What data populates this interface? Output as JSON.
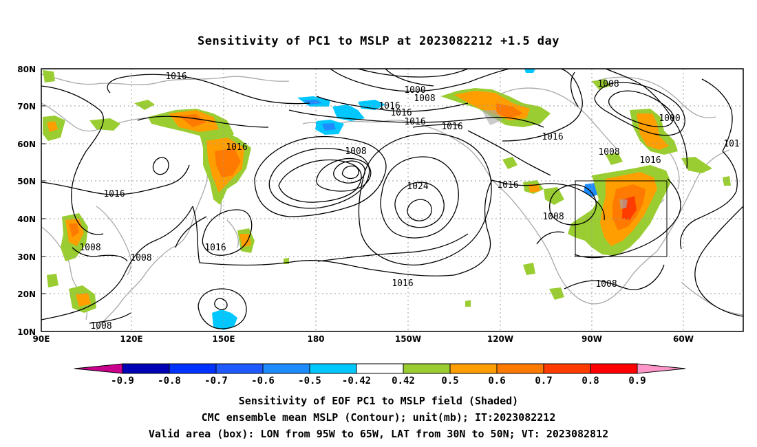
{
  "title": "Sensitivity of PC1 to MSLP at 2023082212 +1.5 day",
  "map": {
    "lat_ticks": [
      "80N",
      "70N",
      "60N",
      "50N",
      "40N",
      "30N",
      "20N",
      "10N"
    ],
    "lon_ticks": [
      "90E",
      "120E",
      "150E",
      "180",
      "150W",
      "120W",
      "90W",
      "60W"
    ],
    "contour_labels": [
      "1016",
      "1000",
      "1008",
      "1016",
      "1016",
      "1016",
      "1016",
      "1008",
      "1016",
      "1016",
      "1016",
      "1024",
      "1016",
      "1008",
      "1000",
      "1008",
      "1016",
      "101",
      "1008",
      "1008",
      "1016",
      "1008",
      "1008",
      "1016",
      "1008"
    ],
    "valid_box": {
      "lon_from": "95W",
      "lon_to": "65W",
      "lat_from": "30N",
      "lat_to": "50N"
    }
  },
  "colorbar": {
    "labels": [
      "-0.9",
      "-0.8",
      "-0.7",
      "-0.6",
      "-0.5",
      "-0.42",
      "0.42",
      "0.5",
      "0.6",
      "0.7",
      "0.8",
      "0.9"
    ],
    "colors": [
      "#c8008c",
      "#0000b4",
      "#0032ff",
      "#1e5aff",
      "#1e8cff",
      "#00c8ff",
      "#ffffff",
      "#9acd32",
      "#ff9e00",
      "#ff7a00",
      "#ff3c00",
      "#ff0000",
      "#ff96c8"
    ]
  },
  "captions": {
    "line1": "Sensitivity of EOF PC1 to MSLP field (Shaded)",
    "line2": "CMC ensemble mean MSLP (Contour); unit(mb); IT:2023082212",
    "line3": "Valid area (box): LON from 95W to 65W, LAT from 30N to 50N; VT: 2023082812"
  }
}
